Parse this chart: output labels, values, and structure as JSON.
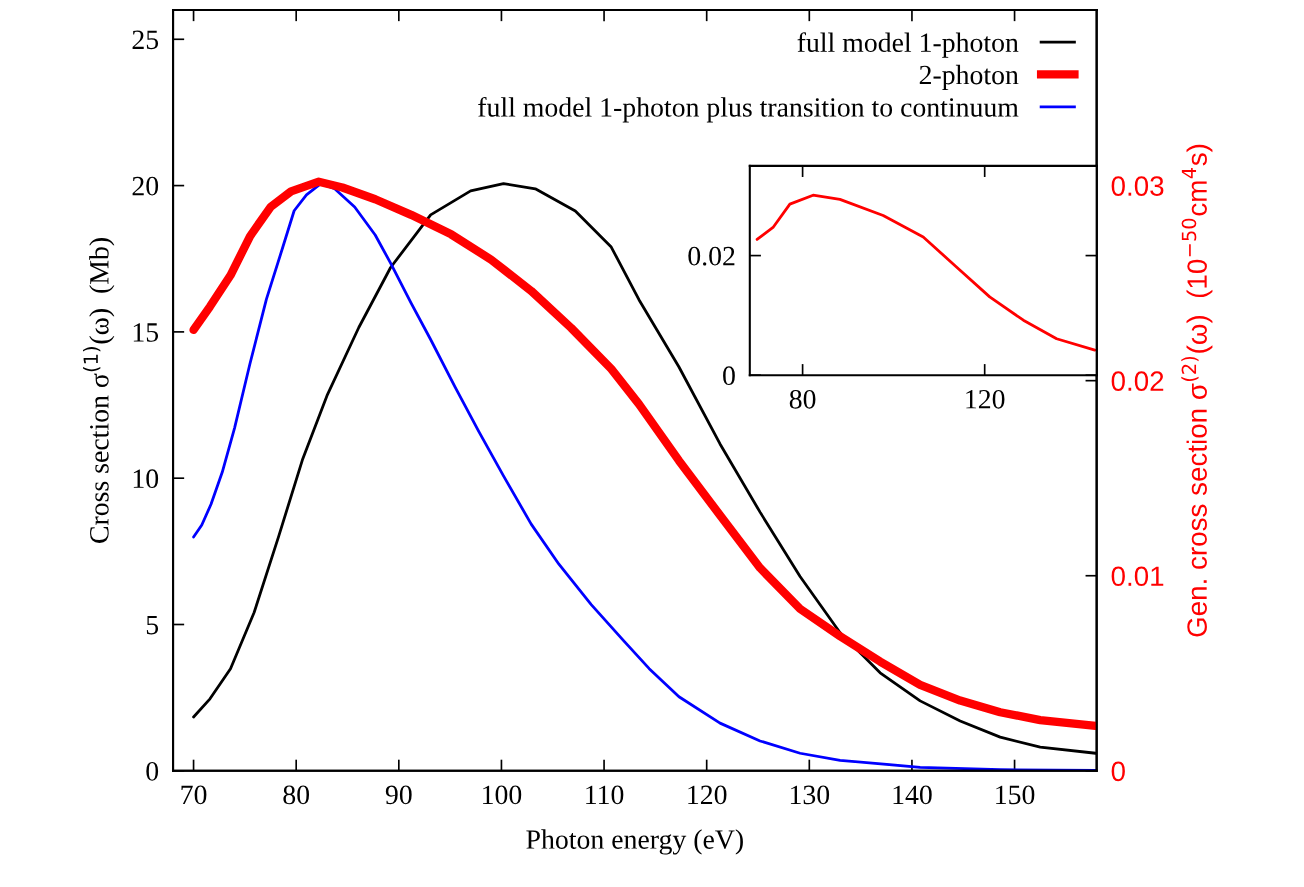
{
  "chart_data": [
    {
      "type": "line",
      "xlabel": "Photon energy (eV)",
      "ylabel": "Cross section σ$^{(1)}$(ω)  (Mb)",
      "y2label": "Gen. cross section σ$^{(2)}$(ω)  (10$^{−50}$cm$^{4}$s)",
      "xlim": [
        68,
        158
      ],
      "xticks": [
        70,
        80,
        90,
        100,
        110,
        120,
        130,
        140,
        150
      ],
      "ylim": [
        0,
        26
      ],
      "yticks": [
        0,
        5,
        10,
        15,
        20,
        25
      ],
      "y2lim": [
        0,
        0.039
      ],
      "y2ticks": [
        0,
        0.01,
        0.02,
        0.03
      ],
      "grid": false,
      "legend": "top right",
      "marker": "none",
      "line_style": "solid",
      "series": [
        {
          "name": "full model 1-photon",
          "color": "#000000",
          "x": [
            70,
            71.6,
            73.6,
            75.9,
            78.3,
            80.6,
            83.0,
            86.1,
            89.2,
            93.1,
            97.0,
            100.2,
            103.3,
            107.2,
            110.7,
            113.4,
            117.3,
            121.3,
            125.2,
            129.1,
            133.0,
            136.9,
            140.8,
            144.7,
            148.6,
            152.5,
            157.9
          ],
          "values": [
            1.84,
            2.46,
            3.49,
            5.41,
            8.02,
            10.62,
            12.82,
            15.15,
            17.2,
            19.0,
            19.82,
            20.07,
            19.89,
            19.13,
            17.9,
            16.1,
            13.8,
            11.17,
            8.84,
            6.64,
            4.72,
            3.35,
            2.39,
            1.7,
            1.15,
            0.81,
            0.6
          ]
        },
        {
          "name": "2-photon",
          "color": "#ff0000",
          "axis": "y2",
          "x": [
            70,
            71.6,
            73.6,
            75.5,
            77.5,
            79.5,
            82.2,
            84.5,
            87.7,
            91.2,
            95.1,
            99.0,
            102.9,
            106.8,
            110.7,
            113.4,
            117.3,
            121.3,
            125.2,
            129.1,
            133.0,
            136.9,
            140.8,
            144.7,
            148.6,
            152.5,
            157.9
          ],
          "values": [
            0.0226,
            0.0238,
            0.0254,
            0.0274,
            0.0289,
            0.0297,
            0.0302,
            0.0299,
            0.0293,
            0.0285,
            0.0275,
            0.0262,
            0.0246,
            0.0227,
            0.0206,
            0.0188,
            0.0159,
            0.0131,
            0.0104,
            0.0083,
            0.0069,
            0.0056,
            0.0044,
            0.0036,
            0.003,
            0.0026,
            0.0023
          ]
        },
        {
          "name": "full model 1-photon plus transition to continuum",
          "color": "#0000ff",
          "x": [
            70,
            70.8,
            71.7,
            72.8,
            74.0,
            75.5,
            77.1,
            78.7,
            79.8,
            81.0,
            82.4,
            83.75,
            85.7,
            87.7,
            89.2,
            91.2,
            93.1,
            95.5,
            97.8,
            100.2,
            102.9,
            105.6,
            108.75,
            111.9,
            114.4,
            117.3,
            121.3,
            125.2,
            129.1,
            133.0,
            140.8,
            148.6,
            157.9
          ],
          "values": [
            7.99,
            8.4,
            9.11,
            10.21,
            11.72,
            13.92,
            16.12,
            17.9,
            19.14,
            19.68,
            20.07,
            19.89,
            19.27,
            18.31,
            17.35,
            15.98,
            14.74,
            13.1,
            11.59,
            10.08,
            8.43,
            7.06,
            5.68,
            4.45,
            3.49,
            2.53,
            1.63,
            1.02,
            0.6,
            0.36,
            0.12,
            0.04,
            0.01
          ]
        }
      ]
    },
    {
      "type": "line",
      "xlim": [
        68.4,
        144.6
      ],
      "xticks": [
        80,
        120
      ],
      "ylim": [
        0,
        0.035
      ],
      "yticks": [
        0,
        0.02
      ],
      "grid": false,
      "marker": "none",
      "line_style": "solid",
      "series": [
        {
          "color": "#ff0000",
          "x": [
            70,
            73.5,
            77.2,
            82.3,
            88.2,
            97.7,
            106.5,
            113.8,
            121.1,
            128.5,
            135.8,
            144.2
          ],
          "values": [
            0.0227,
            0.0247,
            0.0286,
            0.0301,
            0.0294,
            0.0267,
            0.0231,
            0.0181,
            0.0131,
            0.0092,
            0.0061,
            0.0042
          ]
        }
      ]
    }
  ]
}
